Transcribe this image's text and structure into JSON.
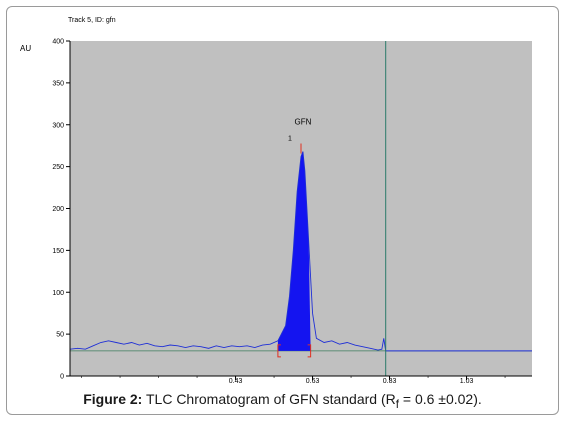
{
  "chart_data": {
    "type": "line",
    "track_label": "Track 5, ID: gfn",
    "ylabel": "AU",
    "ylim": [
      0,
      400
    ],
    "yticks": [
      0,
      50,
      100,
      150,
      200,
      250,
      300,
      350,
      400
    ],
    "xlim": [
      0.0,
      1.2
    ],
    "xticks": [
      0.43,
      0.63,
      0.83,
      1.03
    ],
    "xtick_labels": [
      "0.43",
      "0.63",
      "0.83",
      "1.03"
    ],
    "front_marker_x": 0.82,
    "baseline_y": 30,
    "peak": {
      "label": "GFN",
      "number": "1",
      "rf": 0.6,
      "height": 268,
      "start": 0.54,
      "end": 0.625
    },
    "series": [
      {
        "x": [
          0.0,
          0.02,
          0.04,
          0.06,
          0.08,
          0.1,
          0.12,
          0.14,
          0.16,
          0.18,
          0.2,
          0.22,
          0.24,
          0.26,
          0.28,
          0.3,
          0.32,
          0.34,
          0.36,
          0.38,
          0.4,
          0.42,
          0.44,
          0.46,
          0.48,
          0.5,
          0.52,
          0.54,
          0.56,
          0.57,
          0.58,
          0.59,
          0.6,
          0.605,
          0.61,
          0.62,
          0.63,
          0.64,
          0.66,
          0.68,
          0.7,
          0.72,
          0.74,
          0.76,
          0.78,
          0.8,
          0.81,
          0.815,
          0.82,
          0.825,
          0.83,
          0.85,
          0.9,
          0.95,
          1.0,
          1.05,
          1.1,
          1.15,
          1.2
        ],
        "y": [
          32,
          33,
          32,
          36,
          40,
          42,
          40,
          38,
          40,
          37,
          39,
          36,
          35,
          37,
          36,
          34,
          36,
          35,
          33,
          36,
          34,
          36,
          35,
          36,
          34,
          37,
          38,
          42,
          60,
          95,
          150,
          220,
          262,
          268,
          245,
          160,
          75,
          45,
          40,
          42,
          38,
          40,
          37,
          35,
          33,
          31,
          32,
          45,
          30,
          30,
          30,
          30,
          30,
          30,
          30,
          30,
          30,
          30,
          30
        ]
      }
    ]
  },
  "caption": {
    "label": "Figure 2:",
    "text_before_sub": "TLC Chromatogram of GFN standard (R",
    "subscript": "f",
    "text_after_sub": " = 0.6 ±0.02)."
  },
  "colors": {
    "plot_bg": "#c0c0c0",
    "trace": "#1f2fd6",
    "peak_fill": "#1414f0",
    "marker_line": "#2a7a6a",
    "peak_markers": "#e03020"
  }
}
